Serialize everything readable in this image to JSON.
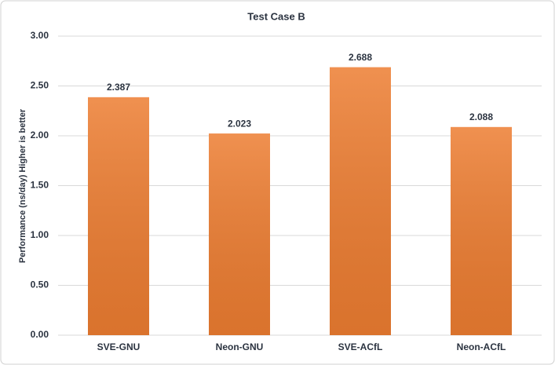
{
  "chart_data": {
    "type": "bar",
    "title": "Test Case B",
    "y_label": "Performance (ns/day) Higher is better",
    "categories": [
      "SVE-GNU",
      "Neon-GNU",
      "SVE-ACfL",
      "Neon-ACfL"
    ],
    "values": [
      2.387,
      2.023,
      2.688,
      2.088
    ],
    "color": "#ed7d31",
    "ylim": [
      0,
      3
    ],
    "yticks": [
      {
        "value": 0,
        "label": "0.00"
      },
      {
        "value": 0.5,
        "label": "0.50"
      },
      {
        "value": 1,
        "label": "1.00"
      },
      {
        "value": 1.5,
        "label": "1.50"
      },
      {
        "value": 2,
        "label": "2.00"
      },
      {
        "value": 2.5,
        "label": "2.50"
      },
      {
        "value": 3,
        "label": "3.00"
      }
    ],
    "grid": true
  }
}
